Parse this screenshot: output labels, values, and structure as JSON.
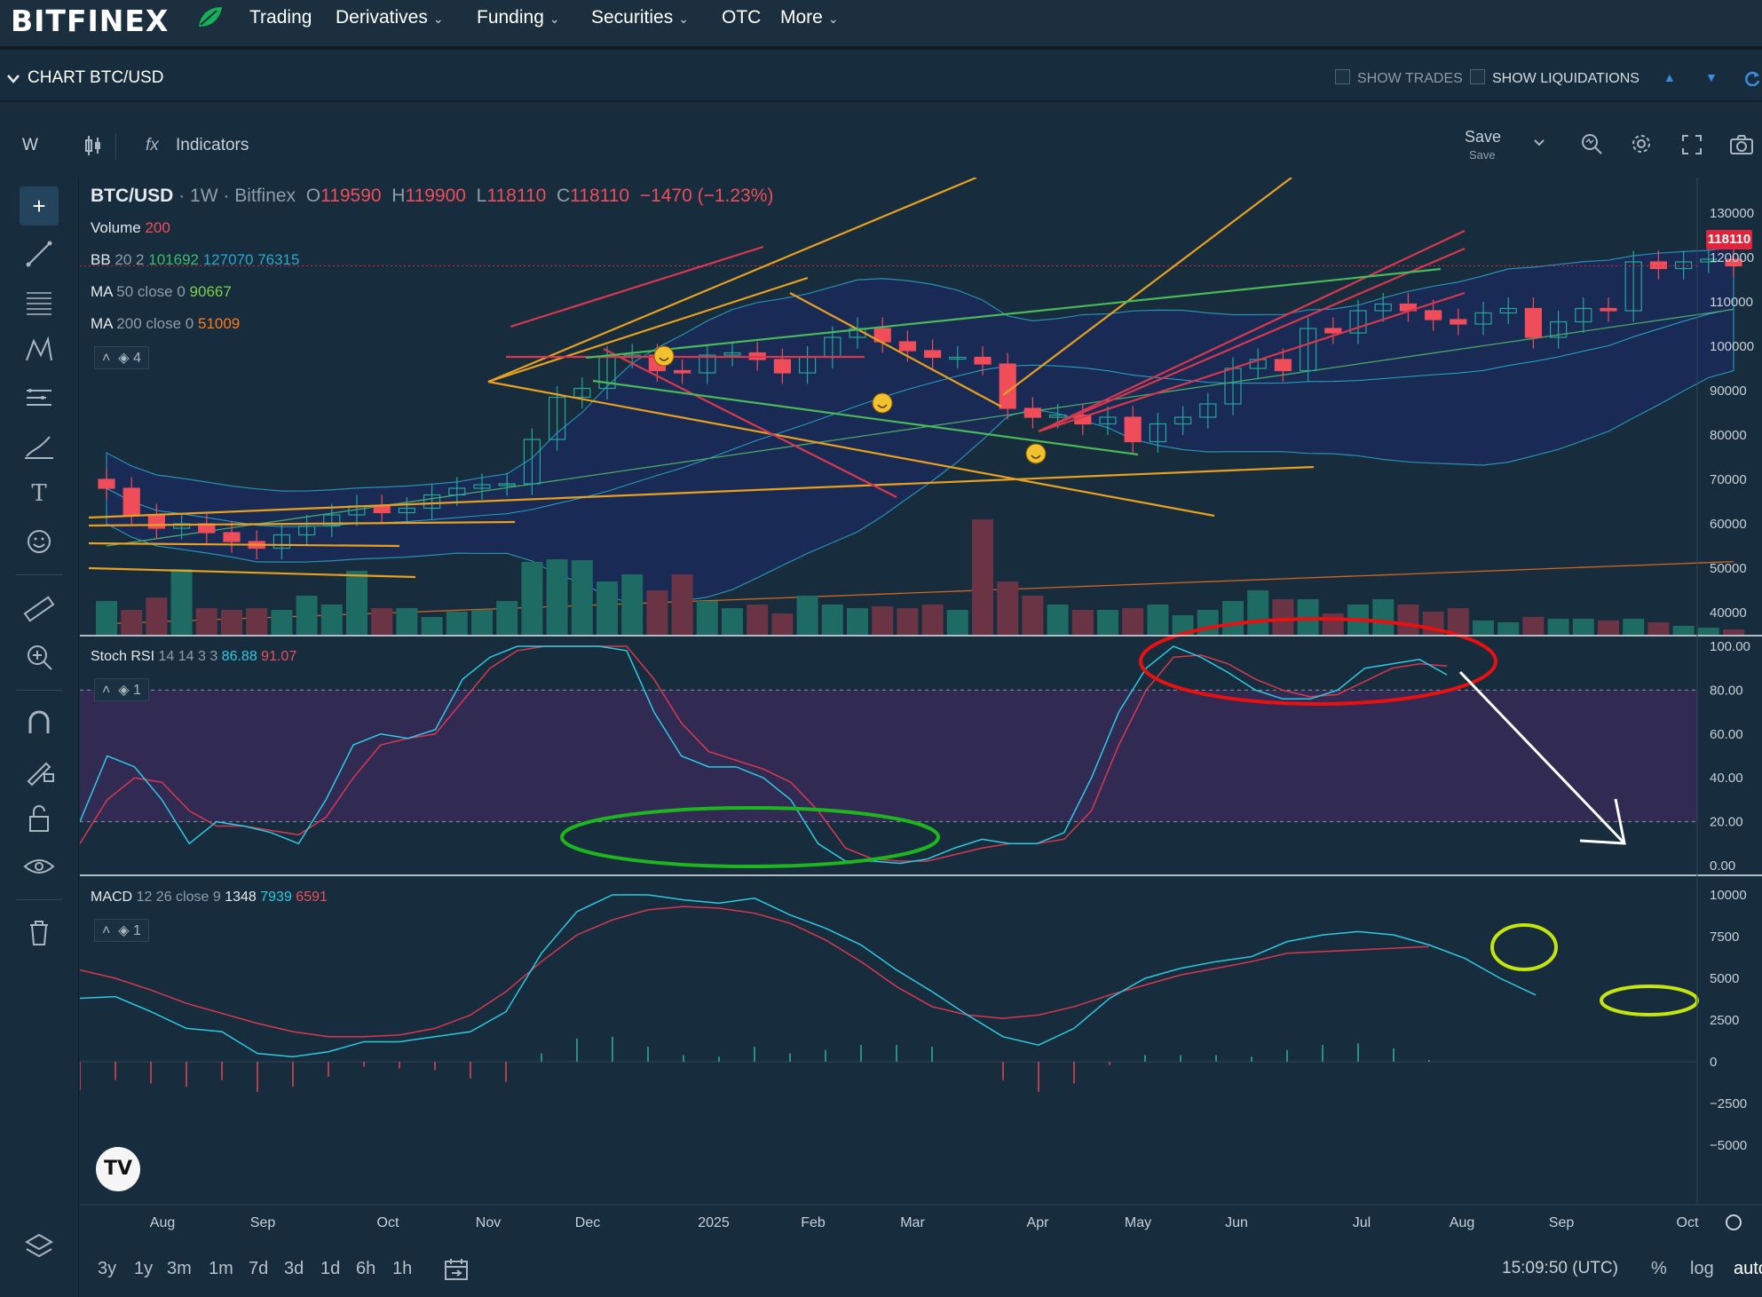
{
  "header": {
    "logo": "BITFINEX",
    "nav": [
      {
        "label": "Trading",
        "dropdown": false
      },
      {
        "label": "Derivatives",
        "dropdown": true
      },
      {
        "label": "Funding",
        "dropdown": true
      },
      {
        "label": "Securities",
        "dropdown": true
      },
      {
        "label": "OTC",
        "dropdown": false
      },
      {
        "label": "More",
        "dropdown": true
      }
    ]
  },
  "chart_header": {
    "title_prefix": "CHART",
    "pair": "BTC/USD",
    "show_trades": "SHOW TRADES",
    "show_liquidations": "SHOW LIQUIDATIONS"
  },
  "toolbar": {
    "interval": "W",
    "indicators": "Indicators",
    "save": "Save",
    "save_sub": "Save"
  },
  "legend": {
    "symbol": "BTC/USD",
    "interval": "1W",
    "exchange": "Bitfinex",
    "o_label": "O",
    "o": "119590",
    "h_label": "H",
    "h": "119900",
    "l_label": "L",
    "l": "118110",
    "c_label": "C",
    "c": "118110",
    "change": "−1470 (−1.23%)",
    "volume_label": "Volume",
    "volume": "200",
    "bb_label": "BB",
    "bb_params": "20 2",
    "bb_1": "101692",
    "bb_2": "127070",
    "bb_3": "76315",
    "ma50_label": "MA",
    "ma50_params": "50 close 0",
    "ma50": "90667",
    "ma200_label": "MA",
    "ma200_params": "200 close 0",
    "ma200": "51009",
    "main_layers": "4",
    "stoch_label": "Stoch RSI",
    "stoch_params": "14 14 3 3",
    "stoch_k": "86.88",
    "stoch_d": "91.07",
    "stoch_layers": "1",
    "macd_label": "MACD",
    "macd_params": "12 26 close 9",
    "macd_hist": "1348",
    "macd_line": "7939",
    "macd_signal": "6591",
    "macd_layers": "1"
  },
  "price_tag": "118110",
  "axes": {
    "price": [
      "130000",
      "120000",
      "110000",
      "100000",
      "90000",
      "80000",
      "70000",
      "60000",
      "50000",
      "40000"
    ],
    "stoch": [
      "100.00",
      "80.00",
      "60.00",
      "40.00",
      "20.00",
      "0.00"
    ],
    "macd": [
      "10000",
      "7500",
      "5000",
      "2500",
      "0",
      "−2500",
      "−5000"
    ],
    "time": [
      "Aug",
      "Sep",
      "Oct",
      "Nov",
      "Dec",
      "2025",
      "Feb",
      "Mar",
      "Apr",
      "May",
      "Jun",
      "Jul",
      "Aug",
      "Sep",
      "Oct"
    ]
  },
  "bottom": {
    "timeframes": [
      "3y",
      "1y",
      "3m",
      "1m",
      "7d",
      "3d",
      "1d",
      "6h",
      "1h"
    ],
    "clock": "15:09:50 (UTC)",
    "percent": "%",
    "log": "log",
    "auto": "auto"
  },
  "colors": {
    "up": "#26a69a",
    "down": "#ef4d5a",
    "bg": "#172d3e",
    "price_tag": "#e0243b",
    "stoch_band": "#3b2b5c"
  },
  "chart_data": {
    "type": "candlestick",
    "interval": "1W",
    "ohlc_close": [
      68000,
      62000,
      59000,
      60000,
      58000,
      56000,
      54500,
      57500,
      59500,
      62000,
      64000,
      62500,
      63500,
      66500,
      68000,
      68800,
      69000,
      79000,
      88500,
      90500,
      97500,
      98000,
      94500,
      94000,
      98000,
      98500,
      97000,
      94000,
      97500,
      102000,
      104000,
      101000,
      99000,
      97500,
      97500,
      96000,
      86000,
      84000,
      84500,
      82500,
      84000,
      78500,
      82500,
      84000,
      87000,
      95000,
      97000,
      94500,
      104000,
      103000,
      108000,
      109500,
      108000,
      106000,
      105000,
      107500,
      108500,
      102000,
      105500,
      108500,
      108000,
      119000,
      117500,
      119000,
      119600,
      118110
    ],
    "price_ylim": [
      35000,
      135000
    ],
    "stoch_rsi": {
      "k_last": 86.88,
      "d_last": 91.07,
      "ylim": [
        0,
        100
      ],
      "bands": [
        20,
        80
      ]
    },
    "macd": {
      "hist_last": 1348,
      "line_last": 7939,
      "signal_last": 6591,
      "ylim": [
        -7500,
        10000
      ]
    }
  }
}
